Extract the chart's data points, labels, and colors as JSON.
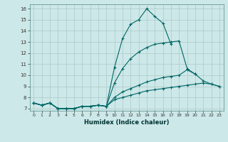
{
  "xlabel": "Humidex (Indice chaleur)",
  "ylabel": "",
  "background_color": "#cde8e8",
  "grid_color": "#adc8c8",
  "line_color": "#006666",
  "xlim": [
    -0.5,
    23.5
  ],
  "ylim": [
    6.8,
    16.4
  ],
  "x_ticks": [
    0,
    1,
    2,
    3,
    4,
    5,
    6,
    7,
    8,
    9,
    10,
    11,
    12,
    13,
    14,
    15,
    16,
    17,
    18,
    19,
    20,
    21,
    22,
    23
  ],
  "y_ticks": [
    7,
    8,
    9,
    10,
    11,
    12,
    13,
    14,
    15,
    16
  ],
  "series": [
    {
      "x": [
        0,
        1,
        2,
        3,
        4,
        5,
        6,
        7,
        8,
        9,
        10,
        11,
        12,
        13,
        14,
        15,
        16,
        17
      ],
      "y": [
        7.5,
        7.3,
        7.5,
        7.0,
        7.0,
        7.0,
        7.2,
        7.2,
        7.3,
        7.2,
        10.7,
        13.3,
        14.6,
        15.0,
        16.0,
        15.3,
        14.7,
        12.8
      ]
    },
    {
      "x": [
        0,
        1,
        2,
        3,
        4,
        5,
        6,
        7,
        8,
        9,
        10,
        11,
        12,
        13,
        14,
        15,
        16,
        17,
        18,
        19,
        20
      ],
      "y": [
        7.5,
        7.3,
        7.5,
        7.0,
        7.0,
        7.0,
        7.2,
        7.2,
        7.3,
        7.2,
        9.3,
        10.6,
        11.5,
        12.1,
        12.5,
        12.8,
        12.9,
        13.0,
        13.1,
        10.6,
        10.1
      ]
    },
    {
      "x": [
        0,
        1,
        2,
        3,
        4,
        5,
        6,
        7,
        8,
        9,
        10,
        11,
        12,
        13,
        14,
        15,
        16,
        17,
        18,
        19,
        20,
        21,
        22,
        23
      ],
      "y": [
        7.5,
        7.3,
        7.5,
        7.0,
        7.0,
        7.0,
        7.2,
        7.2,
        7.3,
        7.2,
        8.0,
        8.5,
        8.8,
        9.1,
        9.4,
        9.6,
        9.8,
        9.9,
        10.0,
        10.5,
        10.1,
        9.5,
        9.2,
        9.0
      ]
    },
    {
      "x": [
        0,
        1,
        2,
        3,
        4,
        5,
        6,
        7,
        8,
        9,
        10,
        11,
        12,
        13,
        14,
        15,
        16,
        17,
        18,
        19,
        20,
        21,
        22,
        23
      ],
      "y": [
        7.5,
        7.3,
        7.5,
        7.0,
        7.0,
        7.0,
        7.2,
        7.2,
        7.3,
        7.2,
        7.8,
        8.0,
        8.2,
        8.4,
        8.6,
        8.7,
        8.8,
        8.9,
        9.0,
        9.1,
        9.2,
        9.3,
        9.2,
        9.0
      ]
    }
  ]
}
